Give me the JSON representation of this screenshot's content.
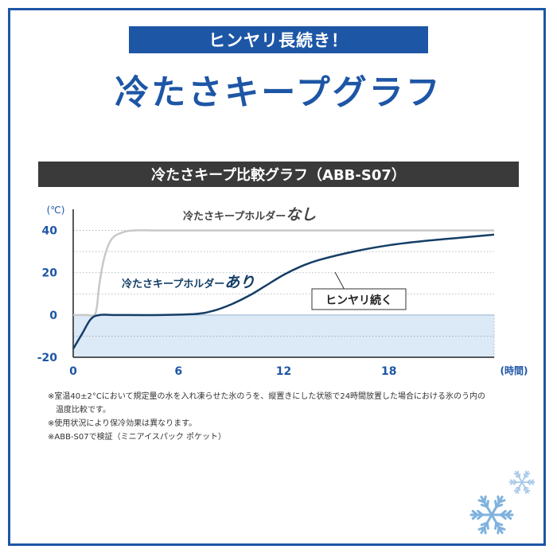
{
  "tagline": "ヒンヤリ長続き！",
  "headline": "冷たさキープグラフ",
  "chart_data": {
    "type": "line",
    "title": "冷たさキープ比較グラフ（ABB-S07）",
    "y_unit": "(℃)",
    "x_unit": "(時間)",
    "xlim": [
      0,
      24
    ],
    "ylim": [
      -20,
      50
    ],
    "x_ticks": [
      "0",
      "6",
      "12",
      "18"
    ],
    "y_ticks": [
      "40",
      "20",
      "0",
      "-20"
    ],
    "grid": "dotted",
    "series": [
      {
        "name": "冷たさキープホルダーなし",
        "label_main": "冷たさキープホルダー",
        "label_emph": "なし",
        "color": "#c8c8c8",
        "x": [
          0,
          0.3,
          0.8,
          1.2,
          1.35,
          1.5,
          1.8,
          2.2,
          2.8,
          3.5,
          5,
          8,
          12,
          18,
          24
        ],
        "y": [
          0,
          0,
          0,
          0,
          4,
          15,
          28,
          36,
          39,
          40,
          40,
          40,
          40,
          40,
          40
        ]
      },
      {
        "name": "冷たさキープホルダーあり",
        "label_main": "冷たさキープホルダー",
        "label_emph": "あり",
        "color": "#143e66",
        "x": [
          0,
          0.5,
          1.0,
          1.5,
          2.5,
          5,
          7,
          8,
          9,
          10,
          11,
          12,
          13,
          14,
          16,
          18,
          20,
          22,
          24
        ],
        "y": [
          -16,
          -9,
          -2,
          0,
          0,
          0,
          0.5,
          2,
          5,
          9,
          14,
          19,
          23,
          26,
          30,
          33,
          35,
          36.5,
          38
        ]
      }
    ],
    "annotation": "ヒンヤリ続く",
    "shaded_range_y": [
      -20,
      0
    ]
  },
  "notes": [
    "※室温40±2°Cにおいて規定量の水を入れ凍らせた氷のうを、縦置きにした状態で24時間放置した場合における氷のう内の",
    "温度比較です。",
    "※使用状況により保冷効果は異なります。",
    "※ABB-S07で検証（ミニアイスパック ポケット）"
  ],
  "colors": {
    "brand": "#1e56a6",
    "shade": "#dce9f6",
    "dark_line": "#143e66",
    "light_line": "#c8c8c8"
  }
}
